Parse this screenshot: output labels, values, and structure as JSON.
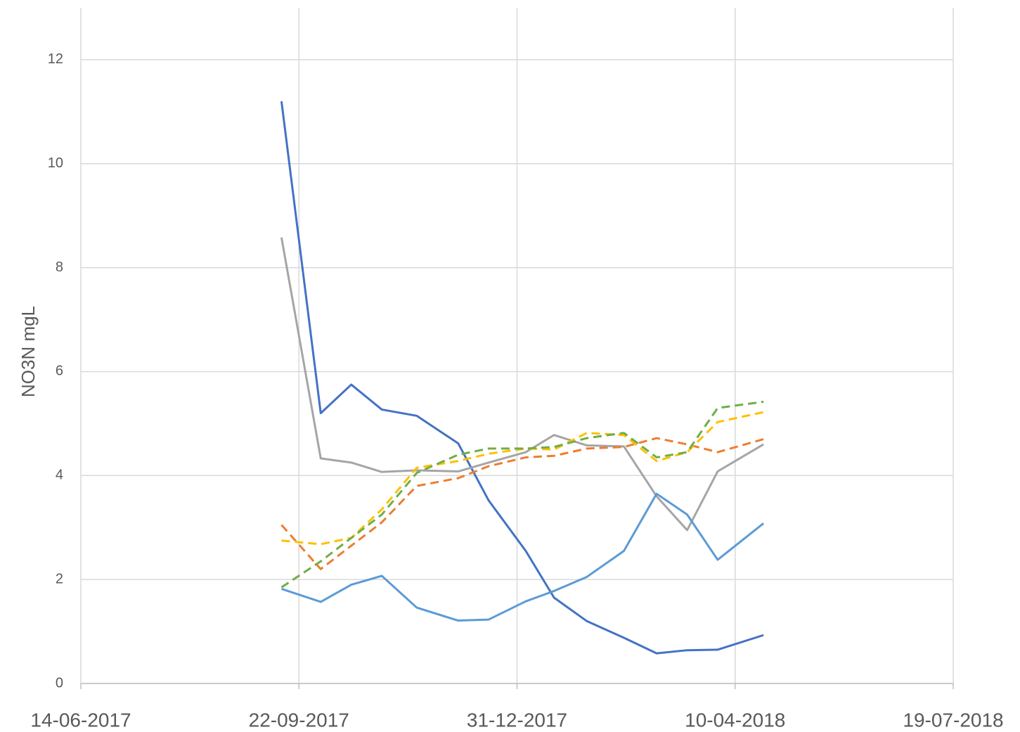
{
  "chart_data": {
    "type": "line",
    "y_label": "NO3N mgL",
    "x": [
      "2017-09-14",
      "2017-10-02",
      "2017-10-16",
      "2017-10-30",
      "2017-11-15",
      "2017-12-04",
      "2017-12-18",
      "2018-01-04",
      "2018-01-17",
      "2018-02-01",
      "2018-02-18",
      "2018-03-05",
      "2018-03-19",
      "2018-04-02",
      "2018-04-23"
    ],
    "series": [
      {
        "color": "#4472c4",
        "dashed": false,
        "values": [
          11.2,
          5.2,
          5.75,
          5.27,
          5.15,
          4.62,
          3.52,
          2.55,
          1.65,
          1.2,
          0.88,
          0.58,
          0.64,
          0.65,
          0.93
        ]
      },
      {
        "color": "#a5a5a5",
        "dashed": false,
        "values": [
          8.58,
          4.33,
          4.25,
          4.07,
          4.1,
          4.08,
          4.25,
          4.45,
          4.78,
          4.58,
          4.56,
          3.6,
          2.95,
          4.08,
          4.6
        ]
      },
      {
        "color": "#5b9bd5",
        "dashed": false,
        "values": [
          1.82,
          1.57,
          1.9,
          2.07,
          1.46,
          1.21,
          1.23,
          1.58,
          1.78,
          2.05,
          2.55,
          3.65,
          3.25,
          2.38,
          3.08
        ]
      },
      {
        "color": "#ed7d31",
        "dashed": true,
        "values": [
          3.05,
          2.2,
          2.65,
          3.1,
          3.8,
          3.95,
          4.18,
          4.35,
          4.38,
          4.52,
          4.55,
          4.72,
          4.6,
          4.45,
          4.7
        ]
      },
      {
        "color": "#ffc000",
        "dashed": true,
        "values": [
          2.75,
          2.68,
          2.8,
          3.35,
          4.15,
          4.28,
          4.42,
          4.52,
          4.5,
          4.82,
          4.78,
          4.28,
          4.45,
          5.03,
          5.22
        ]
      },
      {
        "color": "#70ad47",
        "dashed": true,
        "values": [
          1.85,
          2.35,
          2.8,
          3.25,
          4.05,
          4.4,
          4.52,
          4.52,
          4.55,
          4.72,
          4.82,
          4.35,
          4.45,
          5.3,
          5.42
        ]
      }
    ],
    "xlim": [
      "2017-06-14",
      "2018-07-19"
    ],
    "xticks": [
      {
        "value": "2017-06-14",
        "label": "14-06-2017"
      },
      {
        "value": "2017-09-22",
        "label": "22-09-2017"
      },
      {
        "value": "2017-12-31",
        "label": "31-12-2017"
      },
      {
        "value": "2018-04-10",
        "label": "10-04-2018"
      },
      {
        "value": "2018-07-19",
        "label": "19-07-2018"
      }
    ],
    "ylim": [
      0,
      13
    ],
    "yticks": [
      0,
      2,
      4,
      6,
      8,
      10,
      12
    ],
    "grid": true
  }
}
